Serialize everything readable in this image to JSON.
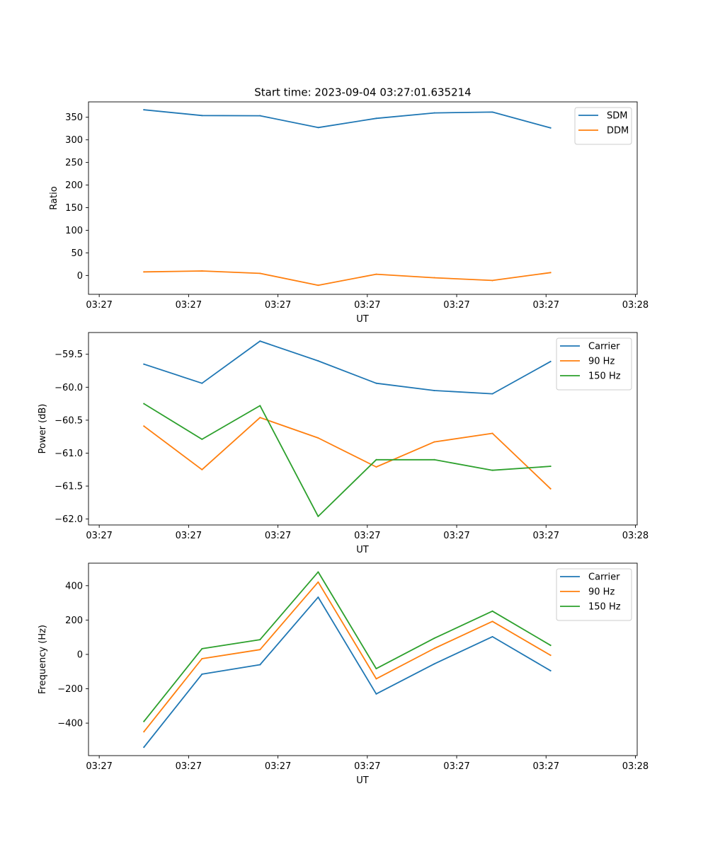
{
  "title": "Start time: 2023-09-04 03:27:01.635214",
  "colors": {
    "blue": "#1f77b4",
    "orange": "#ff7f0e",
    "green": "#2ca02c"
  },
  "chart_data": [
    {
      "type": "line",
      "title": "Start time: 2023-09-04 03:27:01.635214",
      "xlabel": "UT",
      "ylabel": "Ratio",
      "xticklabels": [
        "03:27",
        "03:27",
        "03:27",
        "03:27",
        "03:27",
        "03:27",
        "03:28"
      ],
      "yticks": [
        0,
        50,
        100,
        150,
        200,
        250,
        300,
        350
      ],
      "yticklabels": [
        "0",
        "50",
        "100",
        "150",
        "200",
        "250",
        "300",
        "350"
      ],
      "ylim": [
        -41.7,
        384.0
      ],
      "legend": "top-right",
      "x": [
        0.5,
        1.15,
        1.8,
        2.45,
        3.1,
        3.75,
        4.4,
        5.05
      ],
      "xlim": [
        -0.12,
        6.02
      ],
      "series": [
        {
          "name": "SDM",
          "color": "#1f77b4",
          "values": [
            366.5,
            353.8,
            353.4,
            327.2,
            347.6,
            359.6,
            361.4,
            326.4
          ]
        },
        {
          "name": "DDM",
          "color": "#ff7f0e",
          "values": [
            7.9,
            10.0,
            4.6,
            -21.6,
            2.7,
            -5.0,
            -11.1,
            6.4
          ]
        }
      ]
    },
    {
      "type": "line",
      "xlabel": "UT",
      "ylabel": "Power (dB)",
      "xticklabels": [
        "03:27",
        "03:27",
        "03:27",
        "03:27",
        "03:27",
        "03:27",
        "03:28"
      ],
      "yticks": [
        -62.0,
        -61.5,
        -61.0,
        -60.5,
        -60.0,
        -59.5
      ],
      "yticklabels": [
        "−62.0",
        "−61.5",
        "−61.0",
        "−60.5",
        "−60.0",
        "−59.5"
      ],
      "ylim": [
        -62.09,
        -59.17
      ],
      "legend": "top-right",
      "x": [
        0.5,
        1.15,
        1.8,
        2.45,
        3.1,
        3.75,
        4.4,
        5.05
      ],
      "xlim": [
        -0.12,
        6.02
      ],
      "series": [
        {
          "name": "Carrier",
          "color": "#1f77b4",
          "values": [
            -59.65,
            -59.94,
            -59.3,
            -59.6,
            -59.94,
            -60.05,
            -60.1,
            -59.61
          ]
        },
        {
          "name": "90 Hz",
          "color": "#ff7f0e",
          "values": [
            -60.59,
            -61.25,
            -60.46,
            -60.77,
            -61.21,
            -60.83,
            -60.7,
            -61.54
          ]
        },
        {
          "name": "150 Hz",
          "color": "#2ca02c",
          "values": [
            -60.25,
            -60.79,
            -60.28,
            -61.96,
            -61.1,
            -61.1,
            -61.26,
            -61.2
          ]
        }
      ]
    },
    {
      "type": "line",
      "xlabel": "UT",
      "ylabel": "Frequency (Hz)",
      "xticklabels": [
        "03:27",
        "03:27",
        "03:27",
        "03:27",
        "03:27",
        "03:27",
        "03:28"
      ],
      "yticks": [
        -400,
        -200,
        0,
        200,
        400
      ],
      "yticklabels": [
        "−400",
        "−200",
        "0",
        "200",
        "400"
      ],
      "ylim": [
        -589,
        531
      ],
      "legend": "top-right",
      "x": [
        0.5,
        1.15,
        1.8,
        2.45,
        3.1,
        3.75,
        4.4,
        5.05
      ],
      "xlim": [
        -0.12,
        6.02
      ],
      "series": [
        {
          "name": "Carrier",
          "color": "#1f77b4",
          "values": [
            -540,
            -115,
            -60,
            333,
            -230,
            -55,
            103,
            -95
          ]
        },
        {
          "name": "90 Hz",
          "color": "#ff7f0e",
          "values": [
            -450,
            -25,
            28,
            421,
            -142,
            35,
            192,
            -5
          ]
        },
        {
          "name": "150 Hz",
          "color": "#2ca02c",
          "values": [
            -390,
            33,
            86,
            480,
            -83,
            94,
            252,
            53
          ]
        }
      ]
    }
  ]
}
